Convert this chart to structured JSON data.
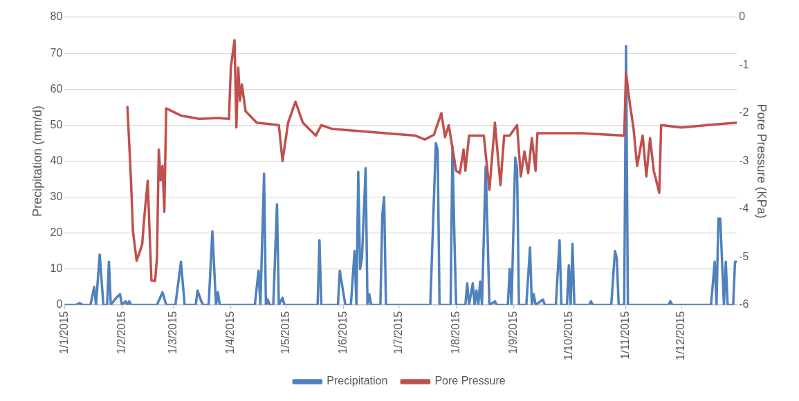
{
  "chart_data": {
    "type": "line",
    "xlabel": null,
    "ylabel": "Precipitation (mm/d)",
    "y2label": "Pore Pressure (KPa)",
    "xlim": [
      "2015-01-01",
      "2015-12-31"
    ],
    "xticks": [
      {
        "value": "2015-01-01",
        "label": "1/1/2015"
      },
      {
        "value": "2015-02-01",
        "label": "1/2/2015"
      },
      {
        "value": "2015-03-01",
        "label": "1/3/2015"
      },
      {
        "value": "2015-04-01",
        "label": "1/4/2015"
      },
      {
        "value": "2015-05-01",
        "label": "1/5/2015"
      },
      {
        "value": "2015-06-01",
        "label": "1/6/2015"
      },
      {
        "value": "2015-07-01",
        "label": "1/7/2015"
      },
      {
        "value": "2015-08-01",
        "label": "1/8/2015"
      },
      {
        "value": "2015-09-01",
        "label": "1/9/2015"
      },
      {
        "value": "2015-10-01",
        "label": "1/10/2015"
      },
      {
        "value": "2015-11-01",
        "label": "1/11/2015"
      },
      {
        "value": "2015-12-01",
        "label": "1/12/2015"
      }
    ],
    "ylim": [
      0,
      80
    ],
    "yticks": [
      0,
      10,
      20,
      30,
      40,
      50,
      60,
      70,
      80
    ],
    "y2lim": [
      -6,
      0
    ],
    "y2ticks": [
      -6,
      -5,
      -4,
      -3,
      -2,
      -1,
      0
    ],
    "grid": "y",
    "legend": "bottom",
    "marker": "none",
    "line_style": "solid",
    "series": [
      {
        "name": "Precipitation",
        "color": "#4f81bd",
        "x": [
          "2015-01-01",
          "2015-01-07",
          "2015-01-09",
          "2015-01-11",
          "2015-01-15",
          "2015-01-17",
          "2015-01-18",
          "2015-01-20",
          "2015-01-22",
          "2015-01-24",
          "2015-01-25",
          "2015-01-26",
          "2015-01-29",
          "2015-01-31",
          "2015-02-01",
          "2015-02-03",
          "2015-02-04",
          "2015-02-05",
          "2015-02-06",
          "2015-02-20",
          "2015-02-23",
          "2015-02-25",
          "2015-03-02",
          "2015-03-05",
          "2015-03-07",
          "2015-03-13",
          "2015-03-14",
          "2015-03-16",
          "2015-03-17",
          "2015-03-20",
          "2015-03-22",
          "2015-03-24",
          "2015-03-25",
          "2015-03-26",
          "2015-04-14",
          "2015-04-16",
          "2015-04-17",
          "2015-04-19",
          "2015-04-20",
          "2015-04-21",
          "2015-04-22",
          "2015-04-24",
          "2015-04-26",
          "2015-04-27",
          "2015-04-29",
          "2015-04-30",
          "2015-05-18",
          "2015-05-19",
          "2015-05-20",
          "2015-05-29",
          "2015-05-30",
          "2015-06-02",
          "2015-06-05",
          "2015-06-07",
          "2015-06-08",
          "2015-06-09",
          "2015-06-10",
          "2015-06-11",
          "2015-06-13",
          "2015-06-14",
          "2015-06-15",
          "2015-06-16",
          "2015-06-21",
          "2015-06-22",
          "2015-06-23",
          "2015-06-24",
          "2015-07-18",
          "2015-07-21",
          "2015-07-22",
          "2015-07-23",
          "2015-07-29",
          "2015-07-30",
          "2015-07-31",
          "2015-08-01",
          "2015-08-06",
          "2015-08-07",
          "2015-08-08",
          "2015-08-10",
          "2015-08-11",
          "2015-08-12",
          "2015-08-13",
          "2015-08-14",
          "2015-08-15",
          "2015-08-17",
          "2015-08-18",
          "2015-08-19",
          "2015-08-22",
          "2015-08-23",
          "2015-08-29",
          "2015-08-30",
          "2015-08-31",
          "2015-09-02",
          "2015-09-03",
          "2015-09-04",
          "2015-09-08",
          "2015-09-10",
          "2015-09-11",
          "2015-09-12",
          "2015-09-13",
          "2015-09-17",
          "2015-09-18",
          "2015-09-24",
          "2015-09-26",
          "2015-09-27",
          "2015-09-30",
          "2015-10-01",
          "2015-10-02",
          "2015-10-03",
          "2015-10-04",
          "2015-10-12",
          "2015-10-13",
          "2015-10-14",
          "2015-10-24",
          "2015-10-26",
          "2015-10-27",
          "2015-10-28",
          "2015-10-31",
          "2015-11-01",
          "2015-11-02",
          "2015-11-24",
          "2015-11-25",
          "2015-11-26",
          "2015-12-17",
          "2015-12-19",
          "2015-12-20",
          "2015-12-21",
          "2015-12-22",
          "2015-12-23",
          "2015-12-24",
          "2015-12-25",
          "2015-12-26",
          "2015-12-29",
          "2015-12-30",
          "2015-12-31"
        ],
        "values": [
          0,
          0,
          0.5,
          0,
          0,
          5,
          0,
          14,
          0,
          0,
          12,
          0,
          2,
          3,
          0,
          1,
          0,
          1,
          0,
          0,
          3.5,
          0,
          0,
          12,
          0,
          0,
          4,
          1,
          0,
          0,
          20.5,
          0,
          3.5,
          0,
          0,
          9.5,
          0,
          36.5,
          0,
          1.5,
          0,
          0,
          28,
          0,
          2,
          0,
          0,
          18,
          0,
          0,
          9.5,
          0,
          0,
          15,
          0,
          37,
          10,
          13,
          38,
          0,
          3,
          0,
          0,
          25,
          30,
          0,
          0,
          45,
          43,
          0,
          0,
          44,
          20,
          0,
          0,
          6,
          0,
          6,
          0,
          4,
          0,
          6.5,
          0,
          38.5,
          20,
          0,
          1,
          0,
          0,
          10,
          0,
          41,
          38,
          0,
          0,
          16,
          0,
          3,
          0,
          1.5,
          0,
          0,
          18,
          0,
          0,
          11,
          0,
          17,
          0,
          0,
          1,
          0,
          0,
          15,
          13,
          0,
          0,
          72,
          0,
          0,
          1,
          0,
          0,
          12,
          0,
          24,
          24,
          12,
          0,
          12,
          0,
          0,
          12,
          12
        ]
      },
      {
        "name": "Pore Pressure",
        "color": "#c0504d",
        "axis": "y2",
        "x": [
          "2015-02-04",
          "2015-02-05",
          "2015-02-06",
          "2015-02-07",
          "2015-02-09",
          "2015-02-12",
          "2015-02-13",
          "2015-02-15",
          "2015-02-16",
          "2015-02-17",
          "2015-02-19",
          "2015-02-20",
          "2015-02-21",
          "2015-02-22",
          "2015-02-23",
          "2015-02-24",
          "2015-02-25",
          "2015-03-05",
          "2015-03-15",
          "2015-03-25",
          "2015-03-31",
          "2015-04-01",
          "2015-04-03",
          "2015-04-04",
          "2015-04-05",
          "2015-04-06",
          "2015-04-07",
          "2015-04-09",
          "2015-04-15",
          "2015-04-27",
          "2015-04-29",
          "2015-05-02",
          "2015-05-06",
          "2015-05-10",
          "2015-05-17",
          "2015-05-20",
          "2015-05-26",
          "2015-07-10",
          "2015-07-15",
          "2015-07-20",
          "2015-07-24",
          "2015-07-26",
          "2015-07-28",
          "2015-08-01",
          "2015-08-03",
          "2015-08-05",
          "2015-08-06",
          "2015-08-08",
          "2015-08-16",
          "2015-08-19",
          "2015-08-22",
          "2015-08-25",
          "2015-08-27",
          "2015-08-30",
          "2015-09-03",
          "2015-09-05",
          "2015-09-07",
          "2015-09-09",
          "2015-09-11",
          "2015-09-13",
          "2015-09-14",
          "2015-10-08",
          "2015-10-31",
          "2015-11-01",
          "2015-11-03",
          "2015-11-05",
          "2015-11-07",
          "2015-11-10",
          "2015-11-12",
          "2015-11-14",
          "2015-11-16",
          "2015-11-19",
          "2015-11-20",
          "2015-12-01",
          "2015-12-15",
          "2015-12-31"
        ],
        "values": [
          -1.87,
          -2.64,
          -3.46,
          -4.46,
          -5.08,
          -4.74,
          -4.23,
          -3.41,
          -4.46,
          -5.49,
          -5.5,
          -5.03,
          -2.76,
          -3.4,
          -3.1,
          -4.06,
          -1.9,
          -2.05,
          -2.12,
          -2.1,
          -2.12,
          -1.05,
          -0.48,
          -2.3,
          -1.05,
          -1.74,
          -1.4,
          -1.96,
          -2.2,
          -2.25,
          -3.0,
          -2.2,
          -1.76,
          -2.2,
          -2.47,
          -2.25,
          -2.33,
          -2.47,
          -2.55,
          -2.45,
          -2.0,
          -2.5,
          -2.25,
          -3.2,
          -3.25,
          -2.76,
          -3.2,
          -2.47,
          -2.47,
          -3.6,
          -2.2,
          -3.5,
          -2.47,
          -2.47,
          -2.25,
          -3.32,
          -2.8,
          -3.25,
          -2.52,
          -3.2,
          -2.42,
          -2.42,
          -2.47,
          -1.16,
          -1.79,
          -2.3,
          -3.1,
          -2.47,
          -3.32,
          -2.52,
          -3.2,
          -3.66,
          -2.25,
          -2.3,
          -2.25,
          -2.2
        ]
      }
    ]
  }
}
